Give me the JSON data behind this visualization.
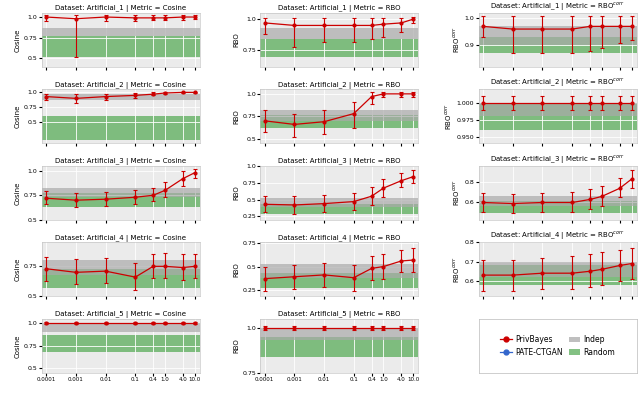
{
  "epsilon_ticks": [
    0.0001,
    0.001,
    0.01,
    0.1,
    0.4,
    1.0,
    4.0,
    10.0
  ],
  "epsilon_labels": [
    "0.0001",
    "0.001",
    "0.01",
    "0.1",
    "0.4",
    "1.0",
    "4.0",
    "10.0"
  ],
  "red_color": "#cc0000",
  "blue_color": "#3366cc",
  "green_color": "#5aad5a",
  "gray_color": "#aaaaaa",
  "privbayes": {
    "1_cosine": {
      "mean": [
        1.0,
        0.98,
        1.0,
        0.99,
        0.99,
        0.99,
        1.0,
        1.0
      ],
      "lo": [
        0.95,
        0.52,
        0.95,
        0.95,
        0.96,
        0.96,
        0.97,
        0.98
      ],
      "hi": [
        1.02,
        1.02,
        1.02,
        1.02,
        1.02,
        1.02,
        1.02,
        1.02
      ]
    },
    "1_rbo": {
      "mean": [
        0.97,
        0.95,
        0.95,
        0.95,
        0.95,
        0.96,
        0.97,
        1.0
      ],
      "lo": [
        0.88,
        0.78,
        0.82,
        0.82,
        0.84,
        0.86,
        0.9,
        0.97
      ],
      "hi": [
        1.01,
        1.01,
        1.01,
        1.01,
        1.01,
        1.01,
        1.01,
        1.02
      ]
    },
    "1_rbocorr": {
      "mean": [
        0.97,
        0.96,
        0.96,
        0.96,
        0.97,
        0.97,
        0.97,
        0.97
      ],
      "lo": [
        0.93,
        0.87,
        0.87,
        0.87,
        0.88,
        0.89,
        0.91,
        0.92
      ],
      "hi": [
        1.01,
        1.01,
        1.01,
        1.01,
        1.01,
        1.01,
        1.01,
        1.01
      ]
    },
    "2_cosine": {
      "mean": [
        0.93,
        0.9,
        0.93,
        0.95,
        0.97,
        0.99,
        1.0,
        1.0
      ],
      "lo": [
        0.87,
        0.83,
        0.87,
        0.91,
        0.95,
        0.97,
        0.99,
        0.99
      ],
      "hi": [
        0.98,
        0.97,
        0.98,
        0.99,
        1.0,
        1.01,
        1.01,
        1.01
      ]
    },
    "2_rbo": {
      "mean": [
        0.7,
        0.66,
        0.69,
        0.78,
        0.97,
        1.0,
        1.0,
        1.0
      ],
      "lo": [
        0.58,
        0.52,
        0.55,
        0.62,
        0.89,
        0.96,
        0.97,
        0.97
      ],
      "hi": [
        0.82,
        0.78,
        0.82,
        0.91,
        1.02,
        1.02,
        1.02,
        1.02
      ]
    },
    "2_rbocorr": {
      "mean": [
        1.0,
        1.0,
        1.0,
        1.0,
        1.0,
        1.0,
        1.0,
        1.0
      ],
      "lo": [
        0.99,
        0.99,
        0.99,
        0.99,
        0.99,
        0.99,
        0.99,
        0.99
      ],
      "hi": [
        1.01,
        1.01,
        1.01,
        1.01,
        1.01,
        1.01,
        1.01,
        1.01
      ]
    },
    "3_cosine": {
      "mean": [
        0.72,
        0.7,
        0.71,
        0.73,
        0.75,
        0.8,
        0.92,
        0.98
      ],
      "lo": [
        0.66,
        0.63,
        0.64,
        0.66,
        0.69,
        0.73,
        0.84,
        0.93
      ],
      "hi": [
        0.79,
        0.77,
        0.78,
        0.8,
        0.82,
        0.89,
        1.0,
        1.02
      ]
    },
    "3_rbo": {
      "mean": [
        0.43,
        0.42,
        0.44,
        0.47,
        0.55,
        0.67,
        0.78,
        0.84
      ],
      "lo": [
        0.31,
        0.29,
        0.32,
        0.34,
        0.42,
        0.54,
        0.68,
        0.74
      ],
      "hi": [
        0.55,
        0.55,
        0.57,
        0.6,
        0.68,
        0.8,
        0.89,
        0.94
      ]
    },
    "3_rbocorr": {
      "mean": [
        0.6,
        0.59,
        0.6,
        0.6,
        0.63,
        0.66,
        0.74,
        0.83
      ],
      "lo": [
        0.51,
        0.5,
        0.51,
        0.51,
        0.54,
        0.57,
        0.65,
        0.74
      ],
      "hi": [
        0.69,
        0.68,
        0.69,
        0.7,
        0.73,
        0.76,
        0.84,
        0.92
      ]
    },
    "4_cosine": {
      "mean": [
        0.73,
        0.7,
        0.71,
        0.66,
        0.75,
        0.75,
        0.74,
        0.75
      ],
      "lo": [
        0.63,
        0.6,
        0.61,
        0.55,
        0.65,
        0.65,
        0.64,
        0.65
      ],
      "hi": [
        0.83,
        0.81,
        0.82,
        0.78,
        0.85,
        0.86,
        0.85,
        0.85
      ]
    },
    "4_rbo": {
      "mean": [
        0.37,
        0.39,
        0.41,
        0.38,
        0.48,
        0.5,
        0.56,
        0.57
      ],
      "lo": [
        0.24,
        0.26,
        0.28,
        0.24,
        0.35,
        0.37,
        0.44,
        0.44
      ],
      "hi": [
        0.5,
        0.52,
        0.54,
        0.52,
        0.61,
        0.63,
        0.68,
        0.7
      ]
    },
    "4_rbocorr": {
      "mean": [
        0.63,
        0.63,
        0.64,
        0.64,
        0.65,
        0.66,
        0.68,
        0.69
      ],
      "lo": [
        0.55,
        0.55,
        0.56,
        0.56,
        0.57,
        0.58,
        0.6,
        0.61
      ],
      "hi": [
        0.71,
        0.71,
        0.72,
        0.73,
        0.74,
        0.75,
        0.76,
        0.77
      ]
    },
    "5_cosine": {
      "mean": [
        1.0,
        1.0,
        1.0,
        1.0,
        1.0,
        1.0,
        1.0,
        1.0
      ],
      "lo": [
        0.99,
        0.99,
        0.99,
        0.99,
        0.99,
        0.99,
        0.99,
        0.99
      ],
      "hi": [
        1.01,
        1.01,
        1.01,
        1.01,
        1.01,
        1.01,
        1.01,
        1.01
      ]
    },
    "5_rbo": {
      "mean": [
        1.0,
        1.0,
        1.0,
        1.0,
        1.0,
        1.0,
        1.0,
        1.0
      ],
      "lo": [
        0.99,
        0.99,
        0.99,
        0.99,
        0.99,
        0.99,
        0.99,
        0.99
      ],
      "hi": [
        1.01,
        1.01,
        1.01,
        1.01,
        1.01,
        1.01,
        1.01,
        1.01
      ]
    },
    "5_rbocorr": {
      "mean": [
        1.0,
        1.0,
        1.0,
        1.0,
        1.0,
        1.0,
        1.0,
        1.0
      ],
      "lo": [
        0.99,
        0.99,
        0.99,
        0.99,
        0.99,
        0.99,
        0.99,
        0.99
      ],
      "hi": [
        1.01,
        1.01,
        1.01,
        1.01,
        1.01,
        1.01,
        1.01,
        1.01
      ]
    }
  },
  "random_bands": {
    "1_cosine": {
      "lo": 0.52,
      "hi": 0.77
    },
    "1_rbo": {
      "lo": 0.7,
      "hi": 0.84
    },
    "1_rbocorr": {
      "lo": 0.87,
      "hi": 0.93
    },
    "2_cosine": {
      "lo": 0.2,
      "hi": 0.6
    },
    "2_rbo": {
      "lo": 0.62,
      "hi": 0.77
    },
    "2_rbocorr": {
      "lo": 0.96,
      "hi": 1.0
    },
    "3_cosine": {
      "lo": 0.63,
      "hi": 0.77
    },
    "3_rbo": {
      "lo": 0.28,
      "hi": 0.43
    },
    "3_rbocorr": {
      "lo": 0.5,
      "hi": 0.61
    },
    "4_cosine": {
      "lo": 0.57,
      "hi": 0.73
    },
    "4_rbo": {
      "lo": 0.27,
      "hi": 0.43
    },
    "4_rbocorr": {
      "lo": 0.58,
      "hi": 0.68
    },
    "5_cosine": {
      "lo": 0.68,
      "hi": 0.87
    },
    "5_rbo": {
      "lo": 0.84,
      "hi": 0.95
    },
    "5_rbocorr": {
      "lo": 0.95,
      "hi": 1.0
    }
  },
  "indep_bands": {
    "1_cosine": {
      "lo": 0.77,
      "hi": 0.87
    },
    "1_rbo": {
      "lo": 0.84,
      "hi": 0.93
    },
    "1_rbocorr": {
      "lo": 0.9,
      "hi": 0.97
    },
    "2_cosine": {
      "lo": 0.87,
      "hi": 0.97
    },
    "2_rbo": {
      "lo": 0.7,
      "hi": 0.82
    },
    "2_rbocorr": {
      "lo": 0.98,
      "hi": 1.0
    },
    "3_cosine": {
      "lo": 0.73,
      "hi": 0.82
    },
    "3_rbo": {
      "lo": 0.39,
      "hi": 0.53
    },
    "3_rbocorr": {
      "lo": 0.57,
      "hi": 0.66
    },
    "4_cosine": {
      "lo": 0.68,
      "hi": 0.8
    },
    "4_rbo": {
      "lo": 0.38,
      "hi": 0.53
    },
    "4_rbocorr": {
      "lo": 0.62,
      "hi": 0.7
    },
    "5_cosine": {
      "lo": 0.9,
      "hi": 1.0
    },
    "5_rbo": {
      "lo": 0.93,
      "hi": 1.0
    },
    "5_rbocorr": {
      "lo": 0.97,
      "hi": 1.0
    }
  },
  "ylims": {
    "1_cosine": [
      0.4,
      1.05
    ],
    "1_rbo": [
      0.62,
      1.05
    ],
    "1_rbocorr": [
      0.82,
      1.02
    ],
    "2_cosine": [
      0.15,
      1.05
    ],
    "2_rbo": [
      0.45,
      1.05
    ],
    "2_rbocorr": [
      0.94,
      1.02
    ],
    "3_cosine": [
      0.55,
      1.05
    ],
    "3_rbo": [
      0.2,
      1.0
    ],
    "3_rbocorr": [
      0.43,
      0.96
    ],
    "4_cosine": [
      0.5,
      0.95
    ],
    "4_rbo": [
      0.18,
      0.76
    ],
    "4_rbocorr": [
      0.52,
      0.8
    ],
    "5_cosine": [
      0.45,
      1.05
    ],
    "5_rbo": [
      0.8,
      1.05
    ],
    "5_rbocorr": [
      0.93,
      1.04
    ]
  },
  "yticks": {
    "1_cosine": [
      0.5,
      0.75,
      1.0
    ],
    "1_rbo": [
      0.75,
      1.0
    ],
    "1_rbocorr": [],
    "2_cosine": [
      0.5,
      0.75,
      1.0
    ],
    "2_rbo": [
      0.5,
      0.75,
      1.0
    ],
    "2_rbocorr": [],
    "3_cosine": [
      0.5,
      0.75,
      1.0
    ],
    "3_rbo": [
      0.25,
      0.5,
      0.75,
      1.0
    ],
    "3_rbocorr": [],
    "4_cosine": [
      0.5,
      0.75
    ],
    "4_rbo": [
      0.25,
      0.5,
      0.75
    ],
    "4_rbocorr": [],
    "5_cosine": [
      0.5,
      0.75,
      1.0
    ],
    "5_rbo": [
      0.75,
      1.0
    ],
    "5_rbocorr": []
  }
}
